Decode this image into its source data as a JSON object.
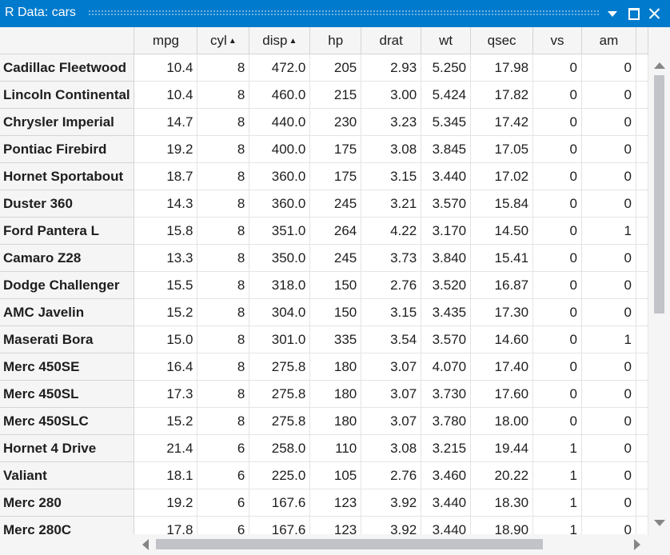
{
  "window": {
    "title": "R Data: cars"
  },
  "table": {
    "columns": [
      {
        "label": "mpg",
        "sort": ""
      },
      {
        "label": "cyl",
        "sort": "▲"
      },
      {
        "label": "disp",
        "sort": "▲"
      },
      {
        "label": "hp",
        "sort": ""
      },
      {
        "label": "drat",
        "sort": ""
      },
      {
        "label": "wt",
        "sort": ""
      },
      {
        "label": "qsec",
        "sort": ""
      },
      {
        "label": "vs",
        "sort": ""
      },
      {
        "label": "am",
        "sort": ""
      }
    ],
    "rows": [
      {
        "name": "Cadillac Fleetwood",
        "values": [
          "10.4",
          "8",
          "472.0",
          "205",
          "2.93",
          "5.250",
          "17.98",
          "0",
          "0"
        ]
      },
      {
        "name": "Lincoln Continental",
        "values": [
          "10.4",
          "8",
          "460.0",
          "215",
          "3.00",
          "5.424",
          "17.82",
          "0",
          "0"
        ]
      },
      {
        "name": "Chrysler Imperial",
        "values": [
          "14.7",
          "8",
          "440.0",
          "230",
          "3.23",
          "5.345",
          "17.42",
          "0",
          "0"
        ]
      },
      {
        "name": "Pontiac Firebird",
        "values": [
          "19.2",
          "8",
          "400.0",
          "175",
          "3.08",
          "3.845",
          "17.05",
          "0",
          "0"
        ]
      },
      {
        "name": "Hornet Sportabout",
        "values": [
          "18.7",
          "8",
          "360.0",
          "175",
          "3.15",
          "3.440",
          "17.02",
          "0",
          "0"
        ]
      },
      {
        "name": "Duster 360",
        "values": [
          "14.3",
          "8",
          "360.0",
          "245",
          "3.21",
          "3.570",
          "15.84",
          "0",
          "0"
        ]
      },
      {
        "name": "Ford Pantera L",
        "values": [
          "15.8",
          "8",
          "351.0",
          "264",
          "4.22",
          "3.170",
          "14.50",
          "0",
          "1"
        ]
      },
      {
        "name": "Camaro Z28",
        "values": [
          "13.3",
          "8",
          "350.0",
          "245",
          "3.73",
          "3.840",
          "15.41",
          "0",
          "0"
        ]
      },
      {
        "name": "Dodge Challenger",
        "values": [
          "15.5",
          "8",
          "318.0",
          "150",
          "2.76",
          "3.520",
          "16.87",
          "0",
          "0"
        ]
      },
      {
        "name": "AMC Javelin",
        "values": [
          "15.2",
          "8",
          "304.0",
          "150",
          "3.15",
          "3.435",
          "17.30",
          "0",
          "0"
        ]
      },
      {
        "name": "Maserati Bora",
        "values": [
          "15.0",
          "8",
          "301.0",
          "335",
          "3.54",
          "3.570",
          "14.60",
          "0",
          "1"
        ]
      },
      {
        "name": "Merc 450SE",
        "values": [
          "16.4",
          "8",
          "275.8",
          "180",
          "3.07",
          "4.070",
          "17.40",
          "0",
          "0"
        ]
      },
      {
        "name": "Merc 450SL",
        "values": [
          "17.3",
          "8",
          "275.8",
          "180",
          "3.07",
          "3.730",
          "17.60",
          "0",
          "0"
        ]
      },
      {
        "name": "Merc 450SLC",
        "values": [
          "15.2",
          "8",
          "275.8",
          "180",
          "3.07",
          "3.780",
          "18.00",
          "0",
          "0"
        ]
      },
      {
        "name": "Hornet 4 Drive",
        "values": [
          "21.4",
          "6",
          "258.0",
          "110",
          "3.08",
          "3.215",
          "19.44",
          "1",
          "0"
        ]
      },
      {
        "name": "Valiant",
        "values": [
          "18.1",
          "6",
          "225.0",
          "105",
          "2.76",
          "3.460",
          "20.22",
          "1",
          "0"
        ]
      },
      {
        "name": "Merc 280",
        "values": [
          "19.2",
          "6",
          "167.6",
          "123",
          "3.92",
          "3.440",
          "18.30",
          "1",
          "0"
        ]
      },
      {
        "name": "Merc 280C",
        "values": [
          "17.8",
          "6",
          "167.6",
          "123",
          "3.92",
          "3.440",
          "18.90",
          "1",
          "0"
        ]
      }
    ]
  },
  "colors": {
    "titlebar": "#007acc",
    "header_bg": "#f5f5f5",
    "grid_line": "#e4e4e4"
  },
  "icons": {
    "dropdown": "chevron-down-icon",
    "maximize": "maximize-icon",
    "close": "close-icon"
  }
}
